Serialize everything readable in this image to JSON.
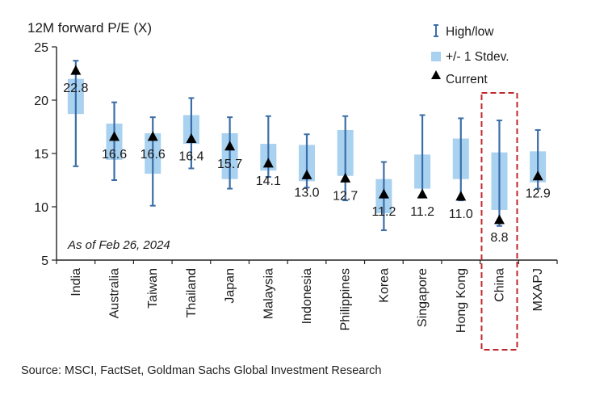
{
  "chart_data": {
    "type": "range",
    "title": "12M forward P/E (X)",
    "annotation": "As of Feb 26, 2024",
    "source": "Source: MSCI, FactSet, Goldman Sachs Global Investment Research",
    "ylim": [
      5,
      25
    ],
    "yticks": [
      5,
      10,
      15,
      20,
      25
    ],
    "legend": [
      {
        "name": "High/low",
        "symbol": "whisker"
      },
      {
        "name": "+/- 1 Stdev.",
        "symbol": "box"
      },
      {
        "name": "Current",
        "symbol": "triangle"
      }
    ],
    "legend_position": "top-right",
    "highlight": "China",
    "categories": [
      "India",
      "Australia",
      "Taiwan",
      "Thailand",
      "Japan",
      "Malaysia",
      "Indonesia",
      "Philippines",
      "Korea",
      "Singapore",
      "Hong Kong",
      "China",
      "MXAPJ"
    ],
    "current": [
      22.8,
      16.6,
      16.6,
      16.4,
      15.7,
      14.1,
      13.0,
      12.7,
      11.2,
      11.2,
      11.0,
      8.8,
      12.9
    ],
    "current_labels": [
      "22.8",
      "16.6",
      "16.6",
      "16.4",
      "15.7",
      "14.1",
      "13.0",
      "12.7",
      "11.2",
      "11.2",
      "11.0",
      "8.8",
      "12.9"
    ],
    "high": [
      23.7,
      19.8,
      18.4,
      20.2,
      18.4,
      18.5,
      16.8,
      18.5,
      14.2,
      18.6,
      18.3,
      18.1,
      17.2
    ],
    "low": [
      13.8,
      12.5,
      10.1,
      13.6,
      11.7,
      12.8,
      11.8,
      10.6,
      7.8,
      10.9,
      10.6,
      8.2,
      11.7
    ],
    "stdev_high": [
      22.0,
      17.8,
      16.9,
      18.6,
      16.9,
      15.9,
      15.8,
      17.2,
      12.6,
      14.9,
      16.4,
      15.1,
      15.2
    ],
    "stdev_low": [
      18.7,
      14.4,
      13.1,
      15.9,
      12.6,
      13.4,
      12.4,
      12.9,
      9.4,
      11.7,
      12.6,
      9.7,
      12.3
    ],
    "colors": {
      "whisker": "#3b6ea8",
      "box": "#a9d1f0",
      "marker": "#000000",
      "highlight": "#c0272d",
      "axis": "#222222"
    }
  }
}
